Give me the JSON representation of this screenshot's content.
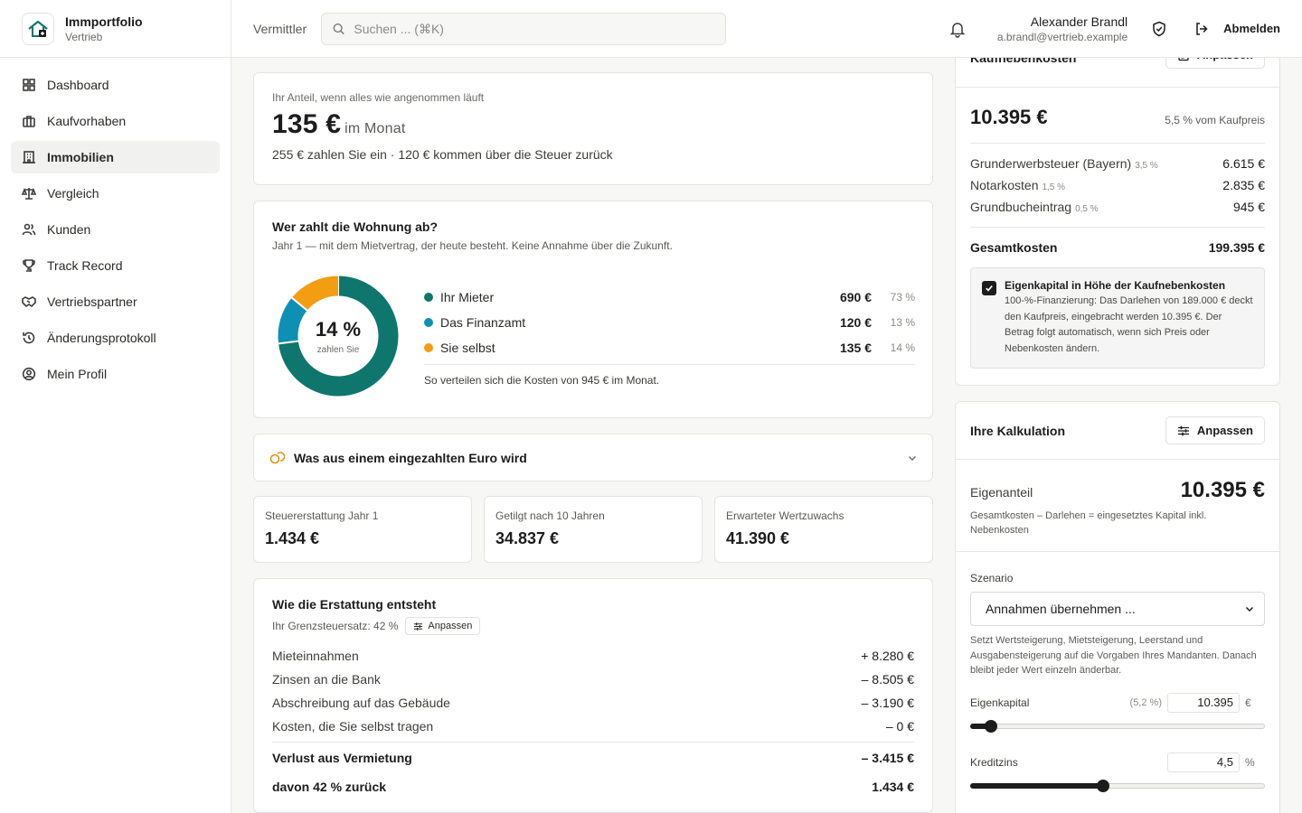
{
  "brand": {
    "name": "Immportfolio",
    "sub": "Vertrieb"
  },
  "nav": [
    {
      "label": "Dashboard",
      "icon": "dashboard-icon",
      "active": false
    },
    {
      "label": "Kaufvorhaben",
      "icon": "briefcase-icon",
      "active": false
    },
    {
      "label": "Immobilien",
      "icon": "building-icon",
      "active": true
    },
    {
      "label": "Vergleich",
      "icon": "scale-icon",
      "active": false
    },
    {
      "label": "Kunden",
      "icon": "users-icon",
      "active": false
    },
    {
      "label": "Track Record",
      "icon": "trophy-icon",
      "active": false
    },
    {
      "label": "Vertriebspartner",
      "icon": "handshake-icon",
      "active": false
    },
    {
      "label": "Änderungsprotokoll",
      "icon": "history-icon",
      "active": false
    },
    {
      "label": "Mein Profil",
      "icon": "user-circle-icon",
      "active": false
    }
  ],
  "topbar": {
    "role": "Vermittler",
    "search_placeholder": "Suchen ... (⌘K)",
    "user_name": "Alexander Brandl",
    "user_email": "a.brandl@vertrieb.example",
    "logout_label": "Abmelden"
  },
  "share": {
    "label": "Ihr Anteil, wenn alles wie angenommen läuft",
    "amount": "135 €",
    "unit": "im Monat",
    "desc": "255 € zahlen Sie ein · 120 € kommen über die Steuer zurück"
  },
  "payoff": {
    "title": "Wer zahlt die Wohnung ab?",
    "subtitle": "Jahr 1 — mit dem Mietvertrag, der heute besteht. Keine Annahme über die Zukunft.",
    "center_pct": "14 %",
    "center_label": "zahlen Sie",
    "items": [
      {
        "name": "Ihr Mieter",
        "amount": "690 €",
        "pct": "73 %",
        "share": 73,
        "color": "#0f766e"
      },
      {
        "name": "Das Finanzamt",
        "amount": "120 €",
        "pct": "13 %",
        "share": 13,
        "color": "#0e90b4"
      },
      {
        "name": "Sie selbst",
        "amount": "135 €",
        "pct": "14 %",
        "share": 14,
        "color": "#f29d12"
      }
    ],
    "note": "So verteilen sich die Kosten von 945 € im Monat."
  },
  "accordion": {
    "label": "Was aus einem eingezahlten Euro wird"
  },
  "kpis": [
    {
      "label": "Steuererstattung Jahr 1",
      "value": "1.434 €"
    },
    {
      "label": "Getilgt nach 10 Jahren",
      "value": "34.837 €"
    },
    {
      "label": "Erwarteter Wertzuwachs",
      "value": "41.390 €"
    }
  ],
  "refund": {
    "title": "Wie die Erstattung entsteht",
    "rate_label": "Ihr Grenzsteuersatz: 42 %",
    "adjust_label": "Anpassen",
    "rows": [
      {
        "label": "Mieteinnahmen",
        "value": "+ 8.280 €"
      },
      {
        "label": "Zinsen an die Bank",
        "value": "– 8.505 €"
      },
      {
        "label": "Abschreibung auf das Gebäude",
        "value": "– 3.190 €"
      },
      {
        "label": "Kosten, die Sie selbst tragen",
        "value": "– 0 €"
      }
    ],
    "loss_label": "Verlust aus Vermietung",
    "loss_value": "– 3.415 €",
    "back_label": "davon 42 % zurück",
    "back_value": "1.434 €"
  },
  "closing_costs": {
    "title": "Kaufnebenkosten",
    "adjust_label": "Anpassen",
    "total": "10.395 €",
    "share_label": "5,5 % vom Kaufpreis",
    "rows": [
      {
        "label": "Grunderwerbsteuer (Bayern)",
        "pct": "3,5 %",
        "value": "6.615 €"
      },
      {
        "label": "Notarkosten",
        "pct": "1,5 %",
        "value": "2.835 €"
      },
      {
        "label": "Grundbucheintrag",
        "pct": "0,5 %",
        "value": "945 €"
      }
    ],
    "total_label": "Gesamtkosten",
    "total_value": "199.395 €",
    "equity_title": "Eigenkapital in Höhe der Kaufnebenkosten",
    "equity_text": "100-%-Finanzierung: Das Darlehen von 189.000 € deckt den Kaufpreis, eingebracht werden 10.395 €. Der Betrag folgt automatisch, wenn sich Preis oder Nebenkosten ändern.",
    "equity_checked": true
  },
  "calc": {
    "title": "Ihre Kalkulation",
    "adjust_label": "Anpassen",
    "eigen_label": "Eigenanteil",
    "eigen_value": "10.395 €",
    "eigen_note": "Gesamtkosten – Darlehen = eingesetztes Kapital inkl. Nebenkosten",
    "scenario_label": "Szenario",
    "scenario_value": "Annahmen übernehmen ...",
    "scenario_help": "Setzt Wertsteigerung, Mietsteigerung, Leerstand und Ausgabensteigerung auf die Vorgaben Ihres Mandanten. Danach bleibt jeder Wert einzeln änderbar.",
    "equity_label": "Eigenkapital",
    "equity_pct": "(5,2 %)",
    "equity_value": "10.395",
    "equity_unit": "€",
    "equity_level": 0.07,
    "rate_label": "Kreditzins",
    "rate_value": "4,5",
    "rate_unit": "%",
    "rate_level": 0.45
  }
}
